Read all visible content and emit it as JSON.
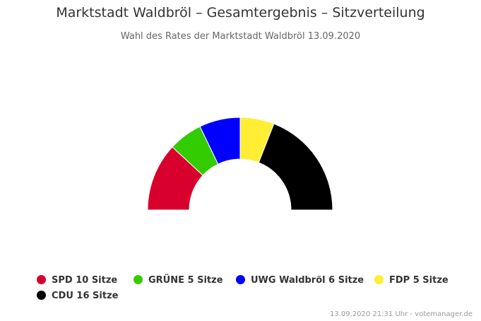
{
  "header": {
    "title": "Marktstadt Waldbröl – Gesamtergebnis – Sitzverteilung",
    "subtitle": "Wahl des Rates der Marktstadt Waldbröl 13.09.2020"
  },
  "chart_data": {
    "type": "pie",
    "variant": "semicircle-parliament",
    "title": "Marktstadt Waldbröl – Gesamtergebnis – Sitzverteilung",
    "subtitle": "Wahl des Rates der Marktstadt Waldbröl 13.09.2020",
    "categories": [
      "SPD",
      "GRÜNE",
      "UWG Waldbröl",
      "FDP",
      "CDU"
    ],
    "values": [
      10,
      5,
      6,
      5,
      16
    ],
    "unit": "Sitze",
    "colors": [
      "#d8002c",
      "#33cc00",
      "#0000ff",
      "#ffee33",
      "#000000"
    ],
    "legend_labels": [
      "SPD 10 Sitze",
      "GRÜNE 5 Sitze",
      "UWG Waldbröl 6 Sitze",
      "FDP 5 Sitze",
      "CDU 16 Sitze"
    ],
    "legend_position": "bottom-left"
  },
  "credits": "13.09.2020 21:31 Uhr - votemanager.de"
}
